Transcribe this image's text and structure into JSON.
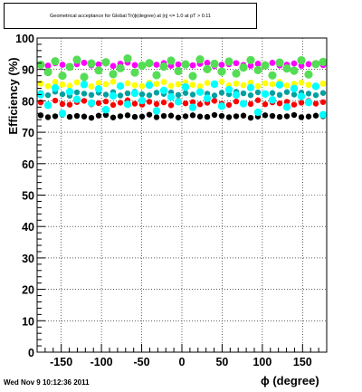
{
  "title": "Geometrical acceptance for Global Tr(ϕ(degree) at |η| <= 1.0 at pT > 0.11",
  "timestamp": "Wed Nov  9 10:12:36 2011",
  "chart_data": {
    "type": "scatter",
    "xlabel": "ϕ (degree)",
    "ylabel": "Efficiency (%)",
    "xlim": [
      -180,
      180
    ],
    "ylim": [
      0,
      100
    ],
    "xticks": [
      -150,
      -100,
      -50,
      0,
      50,
      100,
      150
    ],
    "xtick_labels": [
      "-150",
      "-100",
      "-50",
      "0",
      "50",
      "100",
      "150"
    ],
    "yticks": [
      0,
      10,
      20,
      30,
      40,
      50,
      60,
      70,
      80,
      90,
      100
    ],
    "ytick_labels": [
      "0",
      "10",
      "20",
      "30",
      "40",
      "50",
      "60",
      "70",
      "80",
      "90",
      "100"
    ],
    "grid": true,
    "series": [
      {
        "color": "#000000",
        "markerSize": 3.2,
        "base": 75,
        "y": [
          75.4,
          74.8,
          75.1,
          75.6,
          74.9,
          75.2,
          75.0,
          74.6,
          75.3,
          75.5,
          74.7,
          75.1,
          75.4,
          74.9,
          75.0,
          75.6,
          74.8,
          75.2,
          75.3,
          74.7,
          75.1,
          75.4,
          75.0,
          74.9,
          75.5,
          75.2,
          74.8,
          75.1,
          75.3,
          74.6,
          75.0,
          75.4,
          75.2,
          74.9,
          75.1,
          75.5,
          74.8,
          75.0,
          75.3,
          75.1
        ]
      },
      {
        "color": "#ff0000",
        "markerSize": 3.2,
        "base": 79,
        "y": [
          79.5,
          78.6,
          80.1,
          79.0,
          78.8,
          79.6,
          80.0,
          78.9,
          79.3,
          79.8,
          78.7,
          79.4,
          80.2,
          79.1,
          78.8,
          79.7,
          79.0,
          79.5,
          78.6,
          80.1,
          79.2,
          79.6,
          78.9,
          79.4,
          80.0,
          79.1,
          78.7,
          79.8,
          79.3,
          79.0,
          80.2,
          78.9,
          79.5,
          79.2,
          79.7,
          78.8,
          79.4,
          80.0,
          79.1,
          79.6
        ]
      },
      {
        "color": "#00a0a0",
        "markerSize": 3.2,
        "base": 82,
        "y": [
          82.5,
          81.8,
          82.9,
          82.1,
          81.6,
          82.7,
          82.3,
          81.9,
          82.6,
          82.0,
          82.8,
          81.7,
          82.4,
          82.9,
          82.1,
          81.8,
          82.6,
          82.2,
          82.7,
          81.9,
          82.5,
          82.0,
          82.8,
          82.3,
          81.7,
          82.6,
          82.1,
          82.9,
          82.4,
          81.8,
          82.7,
          82.2,
          82.5,
          81.9,
          82.8,
          82.0,
          82.6,
          82.3,
          81.8,
          82.5
        ]
      },
      {
        "color": "#ffff00",
        "markerSize": 3.4,
        "base": 85,
        "y": [
          85.5,
          84.7,
          86.0,
          85.2,
          84.8,
          85.9,
          85.1,
          84.6,
          85.7,
          85.3,
          86.1,
          84.9,
          85.6,
          85.0,
          84.7,
          85.8,
          85.4,
          86.0,
          84.8,
          85.3,
          85.9,
          85.1,
          84.6,
          85.7,
          85.2,
          86.1,
          84.9,
          85.5,
          85.0,
          85.8,
          84.7,
          85.6,
          85.3,
          86.0,
          84.9,
          85.4,
          85.8,
          85.1,
          84.8,
          85.5
        ]
      },
      {
        "color": "#00ffff",
        "markerSize": 4.2,
        "base": 83,
        "y": [
          82.0,
          78.6,
          84.1,
          76.0,
          82.9,
          80.5,
          85.2,
          79.3,
          83.8,
          77.2,
          81.6,
          84.7,
          78.9,
          82.4,
          80.1,
          85.0,
          76.8,
          83.3,
          81.2,
          79.7,
          84.4,
          77.9,
          82.8,
          80.8,
          85.3,
          78.3,
          83.6,
          81.9,
          79.1,
          84.2,
          76.4,
          82.2,
          80.3,
          85.1,
          78.0,
          83.9,
          81.4,
          79.5,
          84.6,
          75.6
        ]
      },
      {
        "color": "#ff00ff",
        "markerSize": 3.4,
        "base": 91.5,
        "y": [
          91.8,
          91.2,
          92.0,
          91.5,
          91.0,
          91.7,
          92.1,
          91.3,
          91.6,
          91.9,
          91.1,
          91.8,
          92.2,
          91.4,
          91.0,
          91.7,
          91.5,
          92.0,
          91.2,
          91.6,
          91.9,
          91.3,
          91.8,
          92.1,
          91.1,
          91.5,
          91.7,
          92.0,
          91.4,
          91.2,
          91.8,
          91.6,
          92.1,
          91.3,
          91.5,
          91.9,
          91.2,
          91.7,
          92.0,
          91.4
        ]
      },
      {
        "color": "#55dd55",
        "markerSize": 4.6,
        "base": 90,
        "y": [
          91.5,
          89.2,
          92.6,
          88.0,
          90.8,
          93.1,
          87.6,
          91.9,
          89.7,
          92.3,
          88.5,
          90.4,
          93.5,
          89.0,
          91.2,
          92.0,
          88.2,
          90.9,
          92.8,
          89.5,
          91.6,
          87.9,
          93.2,
          90.1,
          91.8,
          89.3,
          92.5,
          88.7,
          90.6,
          93.0,
          89.8,
          91.3,
          88.1,
          92.2,
          90.3,
          89.6,
          92.9,
          88.4,
          91.7,
          92.4
        ]
      }
    ]
  }
}
